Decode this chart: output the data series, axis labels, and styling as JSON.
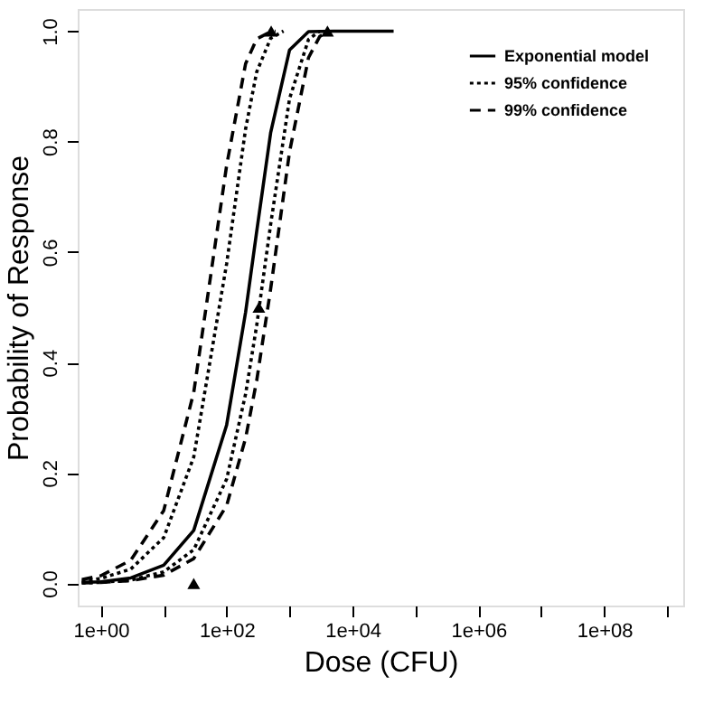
{
  "chart_data": {
    "type": "line",
    "xlabel": "Dose (CFU)",
    "ylabel": "Probability of Response",
    "log": "x",
    "xlim": [
      0.43,
      1800000000.0
    ],
    "ylim": [
      -0.04,
      1.04
    ],
    "xticks": [
      {
        "value": 1,
        "label": "1e+00"
      },
      {
        "value": 10,
        "label": null
      },
      {
        "value": 100,
        "label": "1e+02"
      },
      {
        "value": 1000,
        "label": null
      },
      {
        "value": 10000,
        "label": "1e+04"
      },
      {
        "value": 100000,
        "label": null
      },
      {
        "value": 1000000,
        "label": "1e+06"
      },
      {
        "value": 10000000,
        "label": null
      },
      {
        "value": 100000000,
        "label": "1e+08"
      },
      {
        "value": 1000000000,
        "label": null
      }
    ],
    "yticks": [
      {
        "value": 0,
        "label": "0.0"
      },
      0.2,
      0.4,
      0.6,
      0.8,
      {
        "value": 1,
        "label": "1.0"
      }
    ],
    "grid": false,
    "legend": "top right",
    "series": [
      {
        "name": "Exponential model",
        "color": "#000000",
        "line_style": "solid",
        "marker": "none",
        "x": [
          0.5,
          1,
          3,
          10,
          30,
          100,
          200,
          300,
          500,
          1000,
          2000,
          5000,
          45000
        ],
        "values": [
          0.002,
          0.003,
          0.01,
          0.033,
          0.096,
          0.287,
          0.491,
          0.637,
          0.816,
          0.966,
          0.999,
          1.0,
          1.0
        ]
      },
      {
        "name": "95% confidence",
        "color": "#000000",
        "line_style": "dotted",
        "marker": "none",
        "x": [
          0.5,
          1,
          3,
          10,
          30,
          100,
          200,
          300,
          500,
          800
        ],
        "values": [
          0.004,
          0.009,
          0.026,
          0.083,
          0.229,
          0.579,
          0.823,
          0.926,
          0.987,
          1.0
        ]
      },
      {
        "color": "#000000",
        "line_style": "dotted",
        "marker": "none",
        "x": [
          0.5,
          1,
          3,
          10,
          30,
          100,
          200,
          300,
          500,
          1000,
          2000,
          3000
        ],
        "values": [
          0.001,
          0.002,
          0.006,
          0.021,
          0.061,
          0.189,
          0.343,
          0.467,
          0.65,
          0.878,
          0.985,
          1.0
        ]
      },
      {
        "name": "99% confidence",
        "color": "#000000",
        "line_style": "dashed",
        "marker": "none",
        "x": [
          0.5,
          1,
          3,
          10,
          30,
          100,
          200,
          300,
          500,
          600
        ],
        "values": [
          0.007,
          0.014,
          0.042,
          0.132,
          0.346,
          0.757,
          0.941,
          0.986,
          0.999,
          1.0
        ]
      },
      {
        "color": "#000000",
        "line_style": "dashed",
        "marker": "none",
        "x": [
          0.5,
          1,
          3,
          10,
          30,
          100,
          200,
          300,
          500,
          1000,
          2000,
          3000,
          4000
        ],
        "values": [
          0.001,
          0.002,
          0.005,
          0.015,
          0.045,
          0.141,
          0.263,
          0.367,
          0.533,
          0.782,
          0.952,
          0.99,
          1.0
        ]
      },
      {
        "type": "scatter",
        "color": "#000000",
        "marker": "triangle",
        "x": [
          30,
          325,
          510,
          4000
        ],
        "values": [
          0.0,
          0.5,
          1.0,
          1.0
        ]
      }
    ]
  }
}
